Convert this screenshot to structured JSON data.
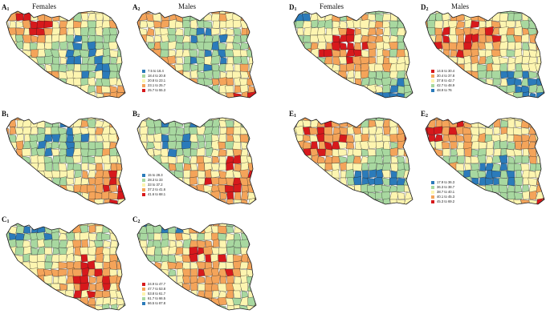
{
  "headers": [
    {
      "id": "left-females",
      "text": "Females"
    },
    {
      "id": "left-males",
      "text": "Males"
    },
    {
      "id": "right-females",
      "text": "Females"
    },
    {
      "id": "right-males",
      "text": "Males"
    }
  ],
  "colors": {
    "blue": "#2b7bba",
    "light_green": "#a8d8a0",
    "light_yellow": "#fdf5b0",
    "orange": "#f4a45a",
    "red": "#d7191c",
    "border": "#1a1a1a"
  },
  "panels": [
    {
      "letter": "A",
      "sub": "1",
      "pattern": 0
    },
    {
      "letter": "A",
      "sub": "2",
      "pattern": 1
    },
    {
      "letter": "B",
      "sub": "1",
      "pattern": 2
    },
    {
      "letter": "B",
      "sub": "2",
      "pattern": 3
    },
    {
      "letter": "C",
      "sub": "1",
      "pattern": 4
    },
    {
      "letter": "C",
      "sub": "2",
      "pattern": 5
    },
    {
      "letter": "D",
      "sub": "1",
      "pattern": 6
    },
    {
      "letter": "D",
      "sub": "2",
      "pattern": 7
    },
    {
      "letter": "E",
      "sub": "1",
      "pattern": 8
    },
    {
      "letter": "E",
      "sub": "2",
      "pattern": 9
    }
  ],
  "legends": {
    "A": [
      {
        "label": "7.5 to 18.4",
        "color": "blue"
      },
      {
        "label": "18.4 to 20.8",
        "color": "light_green"
      },
      {
        "label": "20.8 to 23.1",
        "color": "light_yellow"
      },
      {
        "label": "23.1 to 25.7",
        "color": "orange"
      },
      {
        "label": "25.7 to 55.3",
        "color": "red"
      }
    ],
    "B": [
      {
        "label": "15 to 28.3",
        "color": "blue"
      },
      {
        "label": "28.3 to 33",
        "color": "light_green"
      },
      {
        "label": "33 to 37.2",
        "color": "light_yellow"
      },
      {
        "label": "37.2 to 41.6",
        "color": "orange"
      },
      {
        "label": "41.6 to 68.1",
        "color": "red"
      }
    ],
    "C": [
      {
        "label": "24.9 to 47.7",
        "color": "red"
      },
      {
        "label": "47.7 to 53.8",
        "color": "orange"
      },
      {
        "label": "53.8 to 61.7",
        "color": "light_yellow"
      },
      {
        "label": "61.7 to 66.5",
        "color": "light_green"
      },
      {
        "label": "66.5 to 87.8",
        "color": "blue"
      }
    ],
    "D": [
      {
        "label": "14.5 to 30.4",
        "color": "red"
      },
      {
        "label": "30.4 to 37.8",
        "color": "orange"
      },
      {
        "label": "37.8 to 42.7",
        "color": "light_yellow"
      },
      {
        "label": "42.7 to 48.9",
        "color": "light_green"
      },
      {
        "label": "48.9 to 76",
        "color": "blue"
      }
    ],
    "E": [
      {
        "label": "17.9 to 36.3",
        "color": "blue"
      },
      {
        "label": "36.3 to 38.7",
        "color": "light_green"
      },
      {
        "label": "38.7 to 40.1",
        "color": "light_yellow"
      },
      {
        "label": "40.1 to 45.3",
        "color": "orange"
      },
      {
        "label": "45.3 to 69.2",
        "color": "red"
      }
    ]
  }
}
